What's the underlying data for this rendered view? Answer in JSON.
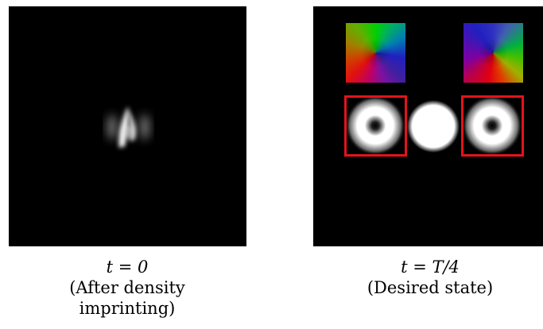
{
  "panels": {
    "left": {
      "caption_math": "t = 0",
      "caption_line1": "(After density",
      "caption_line2": "imprinting)"
    },
    "right": {
      "caption_math": "t = T/4",
      "caption_line1": "(Desired state)"
    }
  },
  "colors": {
    "background": "#000000",
    "highlight": "#e2141a",
    "density": "#ffffff"
  }
}
